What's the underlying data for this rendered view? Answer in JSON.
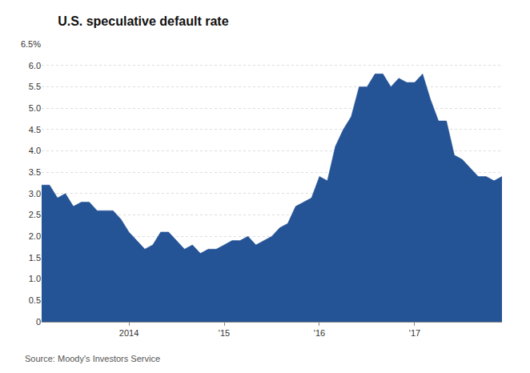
{
  "chart_data": {
    "type": "area",
    "title": "U.S. speculative default rate",
    "source": "Source: Moody's Investors Service",
    "color": "#245396",
    "grid": true,
    "categories": [
      null,
      null,
      null,
      null,
      null,
      null,
      null,
      null,
      null,
      null,
      null,
      "2014",
      null,
      null,
      null,
      null,
      null,
      null,
      null,
      null,
      null,
      null,
      null,
      "'15",
      null,
      null,
      null,
      null,
      null,
      null,
      null,
      null,
      null,
      null,
      null,
      "'16",
      null,
      null,
      null,
      null,
      null,
      null,
      null,
      null,
      null,
      null,
      null,
      "'17",
      null,
      null,
      null,
      null,
      null,
      null,
      null,
      null,
      null,
      null,
      null
    ],
    "values": [
      3.2,
      3.2,
      2.9,
      3.0,
      2.7,
      2.8,
      2.8,
      2.6,
      2.6,
      2.6,
      2.4,
      2.1,
      1.9,
      1.7,
      1.8,
      2.1,
      2.1,
      1.9,
      1.7,
      1.8,
      1.6,
      1.7,
      1.7,
      1.8,
      1.9,
      1.9,
      2.0,
      1.8,
      1.9,
      2.0,
      2.2,
      2.3,
      2.7,
      2.8,
      2.9,
      3.4,
      3.3,
      4.1,
      4.5,
      4.8,
      5.5,
      5.5,
      5.8,
      5.8,
      5.5,
      5.7,
      5.6,
      5.6,
      5.8,
      5.2,
      4.7,
      4.7,
      3.9,
      3.8,
      3.6,
      3.4,
      3.4,
      3.3,
      3.4
    ],
    "ylim": [
      0,
      6.5
    ],
    "yticks": [
      0,
      0.5,
      {
        "value": 1,
        "label": "1.0"
      },
      1.5,
      {
        "value": 2,
        "label": "2.0"
      },
      2.5,
      {
        "value": 3,
        "label": "3.0"
      },
      3.5,
      {
        "value": 4,
        "label": "4.0"
      },
      4.5,
      {
        "value": 5,
        "label": "5.0"
      },
      5.5,
      {
        "value": 6,
        "label": "6.0"
      },
      {
        "value": 6.5,
        "label": "6.5%"
      }
    ]
  }
}
